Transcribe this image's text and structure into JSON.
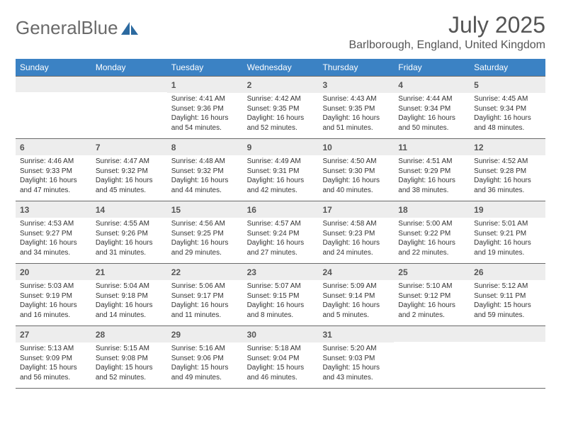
{
  "logo": {
    "textA": "General",
    "textB": "Blue"
  },
  "title": "July 2025",
  "location": "Barlborough, England, United Kingdom",
  "colors": {
    "header_bg": "#3b82c4",
    "header_text": "#ffffff",
    "daynum_bg": "#ededed",
    "border": "#6a6a6a",
    "title": "#555555"
  },
  "weekdays": [
    "Sunday",
    "Monday",
    "Tuesday",
    "Wednesday",
    "Thursday",
    "Friday",
    "Saturday"
  ],
  "weeks": [
    [
      null,
      null,
      {
        "n": "1",
        "sr": "Sunrise: 4:41 AM",
        "ss": "Sunset: 9:36 PM",
        "dl": "Daylight: 16 hours and 54 minutes."
      },
      {
        "n": "2",
        "sr": "Sunrise: 4:42 AM",
        "ss": "Sunset: 9:35 PM",
        "dl": "Daylight: 16 hours and 52 minutes."
      },
      {
        "n": "3",
        "sr": "Sunrise: 4:43 AM",
        "ss": "Sunset: 9:35 PM",
        "dl": "Daylight: 16 hours and 51 minutes."
      },
      {
        "n": "4",
        "sr": "Sunrise: 4:44 AM",
        "ss": "Sunset: 9:34 PM",
        "dl": "Daylight: 16 hours and 50 minutes."
      },
      {
        "n": "5",
        "sr": "Sunrise: 4:45 AM",
        "ss": "Sunset: 9:34 PM",
        "dl": "Daylight: 16 hours and 48 minutes."
      }
    ],
    [
      {
        "n": "6",
        "sr": "Sunrise: 4:46 AM",
        "ss": "Sunset: 9:33 PM",
        "dl": "Daylight: 16 hours and 47 minutes."
      },
      {
        "n": "7",
        "sr": "Sunrise: 4:47 AM",
        "ss": "Sunset: 9:32 PM",
        "dl": "Daylight: 16 hours and 45 minutes."
      },
      {
        "n": "8",
        "sr": "Sunrise: 4:48 AM",
        "ss": "Sunset: 9:32 PM",
        "dl": "Daylight: 16 hours and 44 minutes."
      },
      {
        "n": "9",
        "sr": "Sunrise: 4:49 AM",
        "ss": "Sunset: 9:31 PM",
        "dl": "Daylight: 16 hours and 42 minutes."
      },
      {
        "n": "10",
        "sr": "Sunrise: 4:50 AM",
        "ss": "Sunset: 9:30 PM",
        "dl": "Daylight: 16 hours and 40 minutes."
      },
      {
        "n": "11",
        "sr": "Sunrise: 4:51 AM",
        "ss": "Sunset: 9:29 PM",
        "dl": "Daylight: 16 hours and 38 minutes."
      },
      {
        "n": "12",
        "sr": "Sunrise: 4:52 AM",
        "ss": "Sunset: 9:28 PM",
        "dl": "Daylight: 16 hours and 36 minutes."
      }
    ],
    [
      {
        "n": "13",
        "sr": "Sunrise: 4:53 AM",
        "ss": "Sunset: 9:27 PM",
        "dl": "Daylight: 16 hours and 34 minutes."
      },
      {
        "n": "14",
        "sr": "Sunrise: 4:55 AM",
        "ss": "Sunset: 9:26 PM",
        "dl": "Daylight: 16 hours and 31 minutes."
      },
      {
        "n": "15",
        "sr": "Sunrise: 4:56 AM",
        "ss": "Sunset: 9:25 PM",
        "dl": "Daylight: 16 hours and 29 minutes."
      },
      {
        "n": "16",
        "sr": "Sunrise: 4:57 AM",
        "ss": "Sunset: 9:24 PM",
        "dl": "Daylight: 16 hours and 27 minutes."
      },
      {
        "n": "17",
        "sr": "Sunrise: 4:58 AM",
        "ss": "Sunset: 9:23 PM",
        "dl": "Daylight: 16 hours and 24 minutes."
      },
      {
        "n": "18",
        "sr": "Sunrise: 5:00 AM",
        "ss": "Sunset: 9:22 PM",
        "dl": "Daylight: 16 hours and 22 minutes."
      },
      {
        "n": "19",
        "sr": "Sunrise: 5:01 AM",
        "ss": "Sunset: 9:21 PM",
        "dl": "Daylight: 16 hours and 19 minutes."
      }
    ],
    [
      {
        "n": "20",
        "sr": "Sunrise: 5:03 AM",
        "ss": "Sunset: 9:19 PM",
        "dl": "Daylight: 16 hours and 16 minutes."
      },
      {
        "n": "21",
        "sr": "Sunrise: 5:04 AM",
        "ss": "Sunset: 9:18 PM",
        "dl": "Daylight: 16 hours and 14 minutes."
      },
      {
        "n": "22",
        "sr": "Sunrise: 5:06 AM",
        "ss": "Sunset: 9:17 PM",
        "dl": "Daylight: 16 hours and 11 minutes."
      },
      {
        "n": "23",
        "sr": "Sunrise: 5:07 AM",
        "ss": "Sunset: 9:15 PM",
        "dl": "Daylight: 16 hours and 8 minutes."
      },
      {
        "n": "24",
        "sr": "Sunrise: 5:09 AM",
        "ss": "Sunset: 9:14 PM",
        "dl": "Daylight: 16 hours and 5 minutes."
      },
      {
        "n": "25",
        "sr": "Sunrise: 5:10 AM",
        "ss": "Sunset: 9:12 PM",
        "dl": "Daylight: 16 hours and 2 minutes."
      },
      {
        "n": "26",
        "sr": "Sunrise: 5:12 AM",
        "ss": "Sunset: 9:11 PM",
        "dl": "Daylight: 15 hours and 59 minutes."
      }
    ],
    [
      {
        "n": "27",
        "sr": "Sunrise: 5:13 AM",
        "ss": "Sunset: 9:09 PM",
        "dl": "Daylight: 15 hours and 56 minutes."
      },
      {
        "n": "28",
        "sr": "Sunrise: 5:15 AM",
        "ss": "Sunset: 9:08 PM",
        "dl": "Daylight: 15 hours and 52 minutes."
      },
      {
        "n": "29",
        "sr": "Sunrise: 5:16 AM",
        "ss": "Sunset: 9:06 PM",
        "dl": "Daylight: 15 hours and 49 minutes."
      },
      {
        "n": "30",
        "sr": "Sunrise: 5:18 AM",
        "ss": "Sunset: 9:04 PM",
        "dl": "Daylight: 15 hours and 46 minutes."
      },
      {
        "n": "31",
        "sr": "Sunrise: 5:20 AM",
        "ss": "Sunset: 9:03 PM",
        "dl": "Daylight: 15 hours and 43 minutes."
      },
      null,
      null
    ]
  ]
}
